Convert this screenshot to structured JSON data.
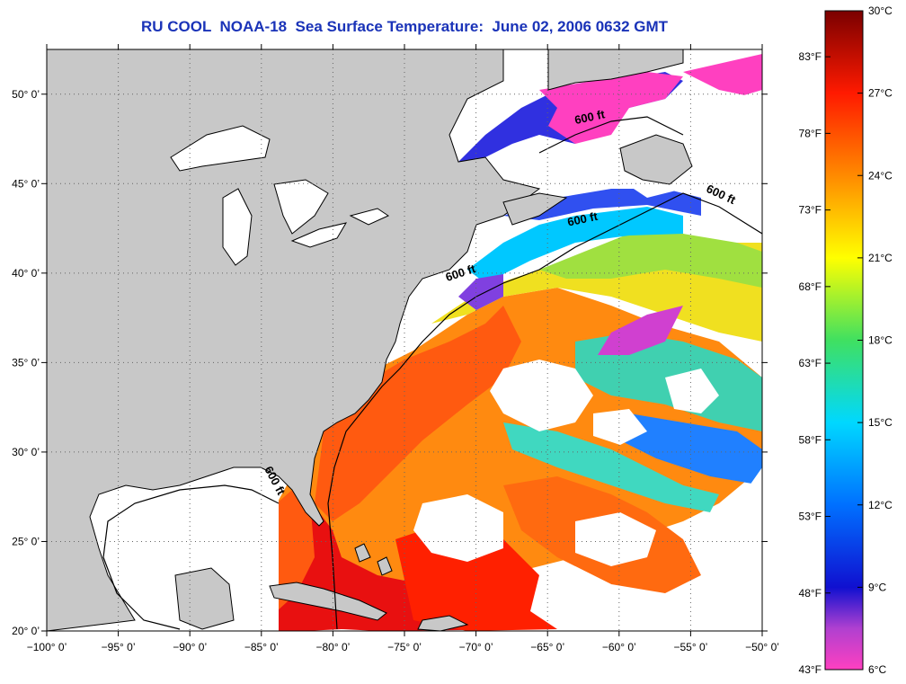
{
  "title": "RU COOL  NOAA-18  Sea Surface Temperature:  June 02, 2006 0632 GMT",
  "map": {
    "lon_range": [
      -100,
      -50
    ],
    "lat_range": [
      20,
      52.5
    ],
    "lon_ticks": [
      {
        "value": -100,
        "label": "−100° 0’"
      },
      {
        "value": -95,
        "label": "−95° 0’"
      },
      {
        "value": -90,
        "label": "−90° 0’"
      },
      {
        "value": -85,
        "label": "−85° 0’"
      },
      {
        "value": -80,
        "label": "−80° 0’"
      },
      {
        "value": -75,
        "label": "−75° 0’"
      },
      {
        "value": -70,
        "label": "−70° 0’"
      },
      {
        "value": -65,
        "label": "−65° 0’"
      },
      {
        "value": -60,
        "label": "−60° 0’"
      },
      {
        "value": -55,
        "label": "−55° 0’"
      },
      {
        "value": -50,
        "label": "−50° 0’"
      }
    ],
    "lat_ticks": [
      {
        "value": 20,
        "label": "20° 0’"
      },
      {
        "value": 25,
        "label": "25° 0’"
      },
      {
        "value": 30,
        "label": "30° 0’"
      },
      {
        "value": 35,
        "label": "35° 0’"
      },
      {
        "value": 40,
        "label": "40° 0’"
      },
      {
        "value": 45,
        "label": "45° 0’"
      },
      {
        "value": 50,
        "label": "50° 0’"
      }
    ],
    "grid": "dotted",
    "contour_labels": [
      {
        "text": "600 ft",
        "lon": -62,
        "lat": 48.5,
        "angle": -12
      },
      {
        "text": "600 ft",
        "lon": -53,
        "lat": 44.2,
        "angle": 25
      },
      {
        "text": "600 ft",
        "lon": -62.5,
        "lat": 42.8,
        "angle": -12
      },
      {
        "text": "600 ft",
        "lon": -71,
        "lat": 39.8,
        "angle": -18
      },
      {
        "text": "600 ft",
        "lon": -84.3,
        "lat": 28.3,
        "angle": 62
      }
    ],
    "colors": {
      "land": "#c8c8c8",
      "no_data": "#ffffff",
      "contour": "#000000"
    }
  },
  "colorbar": {
    "celsius_range": [
      6,
      30
    ],
    "fahrenheit_range": [
      43,
      86
    ],
    "celsius_labels": [
      {
        "value": 30,
        "label": "30°C"
      },
      {
        "value": 27,
        "label": "27°C"
      },
      {
        "value": 24,
        "label": "24°C"
      },
      {
        "value": 21,
        "label": "21°C"
      },
      {
        "value": 18,
        "label": "18°C"
      },
      {
        "value": 15,
        "label": "15°C"
      },
      {
        "value": 12,
        "label": "12°C"
      },
      {
        "value": 9,
        "label": "9°C"
      },
      {
        "value": 6,
        "label": "6°C"
      }
    ],
    "fahrenheit_labels": [
      {
        "value": 83,
        "label": "83°F"
      },
      {
        "value": 78,
        "label": "78°F"
      },
      {
        "value": 73,
        "label": "73°F"
      },
      {
        "value": 68,
        "label": "68°F"
      },
      {
        "value": 63,
        "label": "63°F"
      },
      {
        "value": 58,
        "label": "58°F"
      },
      {
        "value": 53,
        "label": "53°F"
      },
      {
        "value": 48,
        "label": "48°F"
      },
      {
        "value": 43,
        "label": "43°F"
      }
    ],
    "gradient_stops": [
      {
        "celsius": 30,
        "color": "#7a0000"
      },
      {
        "celsius": 27,
        "color": "#ff1a00"
      },
      {
        "celsius": 24,
        "color": "#ff8a00"
      },
      {
        "celsius": 21,
        "color": "#ffff00"
      },
      {
        "celsius": 18,
        "color": "#40e060"
      },
      {
        "celsius": 15,
        "color": "#00d8ff"
      },
      {
        "celsius": 12,
        "color": "#0070ff"
      },
      {
        "celsius": 9,
        "color": "#1010d0"
      },
      {
        "celsius": 7.5,
        "color": "#b040d0"
      },
      {
        "celsius": 6,
        "color": "#ff40c0"
      }
    ]
  }
}
